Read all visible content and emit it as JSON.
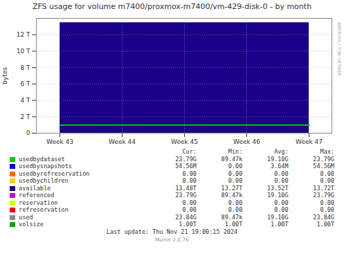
{
  "chart_data": {
    "type": "area",
    "title": "ZFS usage for volume m7400/proxmox-m7400/vm-429-disk-0 - by month",
    "y_label": "bytes",
    "categories": [
      "Week 43",
      "Week 44",
      "Week 45",
      "Week 46",
      "Week 47"
    ],
    "series": [
      {
        "name": "available",
        "color": "#1a0088",
        "type": "area",
        "values": [
          13480000000000,
          13480000000000,
          13480000000000,
          13480000000000,
          13480000000000
        ]
      },
      {
        "name": "usedbydataset",
        "color": "#00cc00",
        "type": "line",
        "values": [
          23790000000,
          23790000000,
          23790000000,
          23790000000,
          23790000000
        ]
      },
      {
        "name": "volsize",
        "color": "#00aa00",
        "type": "line",
        "values": [
          1000000000000,
          1000000000000,
          1000000000000,
          1000000000000,
          1000000000000
        ]
      }
    ],
    "ylim": [
      0,
      14000000000000
    ],
    "yticks": [
      0,
      {
        "value": 2000000000000,
        "label": "2 T"
      },
      {
        "value": 4000000000000,
        "label": "4 T"
      },
      {
        "value": 6000000000000,
        "label": "6 T"
      },
      {
        "value": 8000000000000,
        "label": "8 T"
      },
      {
        "value": 10000000000000,
        "label": "10 T"
      },
      {
        "value": 12000000000000,
        "label": "12 T"
      }
    ],
    "grid": true,
    "legend_table": {
      "columns": [
        "Cur:",
        "Min:",
        "Avg:",
        "Max:"
      ],
      "rows": [
        {
          "label": "usedbydataset",
          "color": "#00cc00",
          "cur": "23.79G",
          "min": "89.47k",
          "avg": "19.10G",
          "max": "23.79G"
        },
        {
          "label": "usedbysnapshots",
          "color": "#0000cc",
          "cur": "54.56M",
          "min": "0.00",
          "avg": "3.64M",
          "max": "54.56M"
        },
        {
          "label": "usedbyrefreservation",
          "color": "#ff6600",
          "cur": "0.00",
          "min": "0.00",
          "avg": "0.00",
          "max": "0.00"
        },
        {
          "label": "usedbychildren",
          "color": "#ffcc00",
          "cur": "0.00",
          "min": "0.00",
          "avg": "0.00",
          "max": "0.00"
        },
        {
          "label": "available",
          "color": "#1a0088",
          "cur": "13.48T",
          "min": "13.27T",
          "avg": "13.52T",
          "max": "13.72T"
        },
        {
          "label": "referenced",
          "color": "#cc00cc",
          "cur": "23.79G",
          "min": "89.47k",
          "avg": "19.10G",
          "max": "23.79G"
        },
        {
          "label": "reservation",
          "color": "#ccff00",
          "cur": "0.00",
          "min": "0.00",
          "avg": "0.00",
          "max": "0.00"
        },
        {
          "label": "refreservation",
          "color": "#ff0000",
          "cur": "0.00",
          "min": "0.00",
          "avg": "0.00",
          "max": "0.00"
        },
        {
          "label": "used",
          "color": "#888888",
          "cur": "23.84G",
          "min": "89.47k",
          "avg": "19.10G",
          "max": "23.84G"
        },
        {
          "label": "volsize",
          "color": "#00aa00",
          "cur": "1.00T",
          "min": "1.00T",
          "avg": "1.00T",
          "max": "1.00T"
        }
      ]
    },
    "annotations": [
      "Last update: Thu Nov 21 19:00:15 2024",
      "Munin 2.0.76",
      "RRDTOOL / TOBI OETIKER"
    ]
  }
}
